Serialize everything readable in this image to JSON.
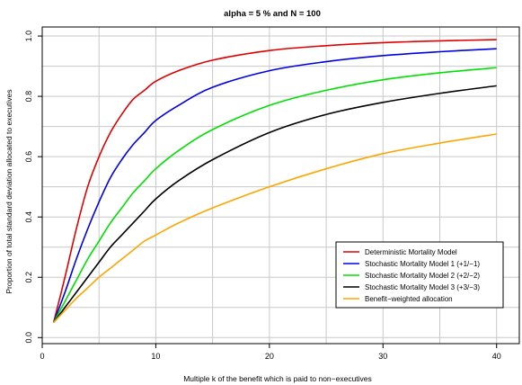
{
  "chart_data": {
    "type": "line",
    "title": "alpha = 5 % and N = 100",
    "xlabel": "Multiple k of the benefit which is paid to non−executives",
    "ylabel": "Proportion of total standard deviation allocated to executives",
    "xlim": [
      0,
      42
    ],
    "ylim": [
      -0.02,
      1.03
    ],
    "xticks": [
      0,
      10,
      20,
      30,
      40
    ],
    "xtick_labels": [
      "0",
      "10",
      "20",
      "30",
      "40"
    ],
    "yticks": [
      0.0,
      0.2,
      0.4,
      0.6,
      0.8,
      1.0
    ],
    "ytick_labels": [
      "0.0",
      "0.2",
      "0.4",
      "0.6",
      "0.8",
      "1.0"
    ],
    "grid": true,
    "legend_position": "bottom-right",
    "series": [
      {
        "name": "Deterministic Mortality Model",
        "color": "#e00000",
        "x": [
          1,
          2,
          3,
          4,
          5,
          6,
          7,
          8,
          9,
          10,
          12,
          15,
          20,
          25,
          30,
          35,
          40
        ],
        "y": [
          0.05,
          0.2,
          0.36,
          0.5,
          0.6,
          0.68,
          0.74,
          0.79,
          0.82,
          0.85,
          0.885,
          0.92,
          0.952,
          0.968,
          0.978,
          0.984,
          0.988
        ]
      },
      {
        "name": "Stochastic Mortality Model 1 (+1/−1)",
        "color": "#0000e6",
        "x": [
          1,
          2,
          3,
          4,
          5,
          6,
          7,
          8,
          9,
          10,
          12,
          15,
          20,
          25,
          30,
          35,
          40
        ],
        "y": [
          0.05,
          0.15,
          0.26,
          0.36,
          0.45,
          0.53,
          0.59,
          0.64,
          0.68,
          0.72,
          0.77,
          0.83,
          0.885,
          0.915,
          0.935,
          0.948,
          0.958
        ]
      },
      {
        "name": "Stochastic Mortality Model 2 (+2/−2)",
        "color": "#00e000",
        "x": [
          1,
          2,
          3,
          4,
          5,
          6,
          7,
          8,
          9,
          10,
          12,
          15,
          20,
          25,
          30,
          35,
          40
        ],
        "y": [
          0.05,
          0.12,
          0.19,
          0.26,
          0.32,
          0.38,
          0.43,
          0.48,
          0.52,
          0.56,
          0.62,
          0.69,
          0.77,
          0.82,
          0.855,
          0.878,
          0.895
        ]
      },
      {
        "name": "Stochastic Mortality Model 3 (+3/−3)",
        "color": "#000000",
        "x": [
          1,
          2,
          3,
          4,
          5,
          6,
          7,
          8,
          9,
          10,
          12,
          15,
          20,
          25,
          30,
          35,
          40
        ],
        "y": [
          0.05,
          0.1,
          0.15,
          0.2,
          0.25,
          0.3,
          0.34,
          0.38,
          0.42,
          0.46,
          0.52,
          0.59,
          0.68,
          0.74,
          0.78,
          0.81,
          0.835
        ]
      },
      {
        "name": "Benefit−weighted allocation",
        "color": "#ffa500",
        "x": [
          1,
          2,
          3,
          4,
          5,
          6,
          7,
          8,
          9,
          10,
          12,
          15,
          20,
          25,
          30,
          35,
          40
        ],
        "y": [
          0.05,
          0.09,
          0.13,
          0.165,
          0.2,
          0.23,
          0.26,
          0.29,
          0.32,
          0.34,
          0.38,
          0.43,
          0.5,
          0.56,
          0.61,
          0.645,
          0.675
        ]
      }
    ]
  }
}
